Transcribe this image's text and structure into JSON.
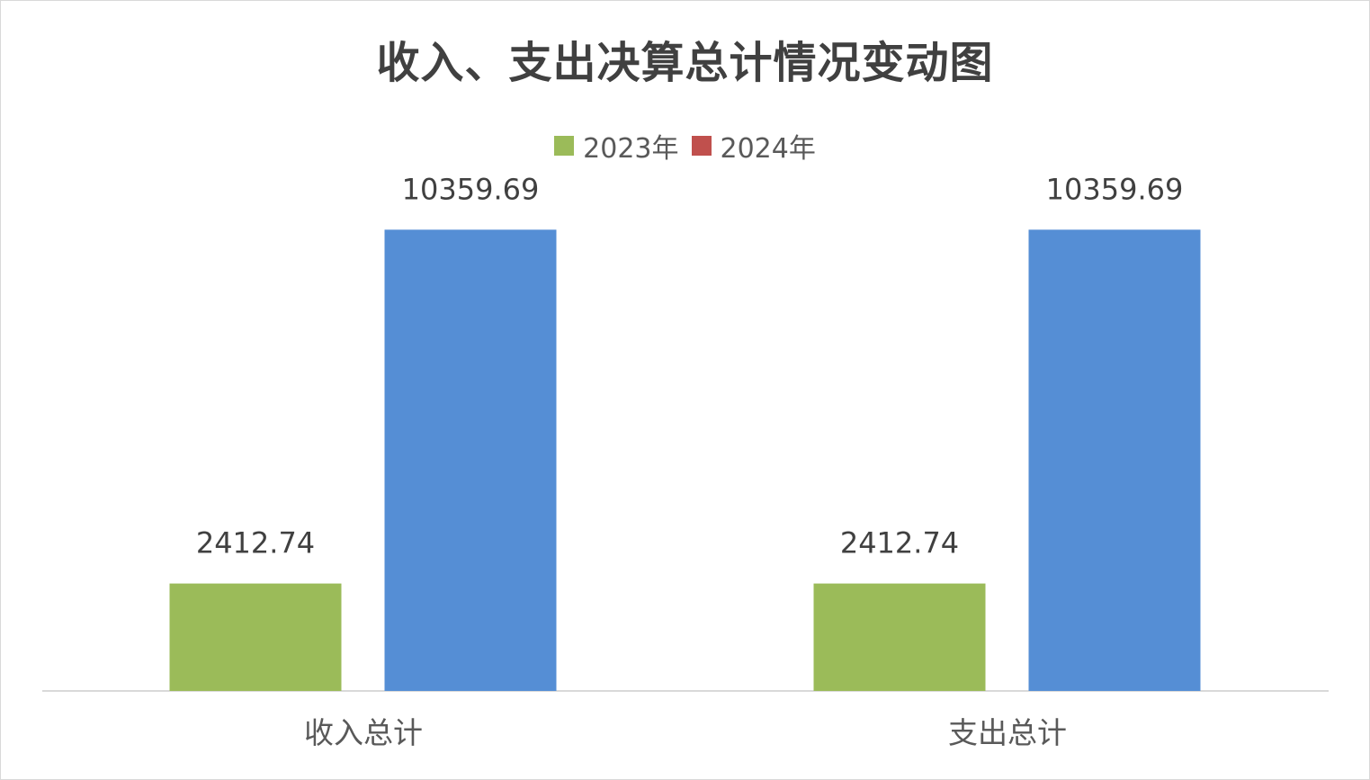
{
  "chart_data": {
    "type": "bar",
    "title": "收入、支出决算总计情况变动图",
    "categories": [
      "收入总计",
      "支出总计"
    ],
    "series": [
      {
        "name": "2023年",
        "values": [
          2412.74,
          2412.74
        ],
        "color": "#9bbb59",
        "legend_color": "#9bbb59"
      },
      {
        "name": "2024年",
        "values": [
          10359.69,
          10359.69
        ],
        "color": "#558ed5",
        "legend_color": "#c0504d"
      }
    ],
    "data_labels": [
      [
        "2412.74",
        "2412.74"
      ],
      [
        "10359.69",
        "10359.69"
      ]
    ],
    "ylim": [
      0,
      13700
    ],
    "grid": false,
    "legend_position": "top",
    "xlabel": "",
    "ylabel": ""
  },
  "colors": {
    "title": "#404040",
    "text": "#595959",
    "axis": "#d9d9d9"
  }
}
